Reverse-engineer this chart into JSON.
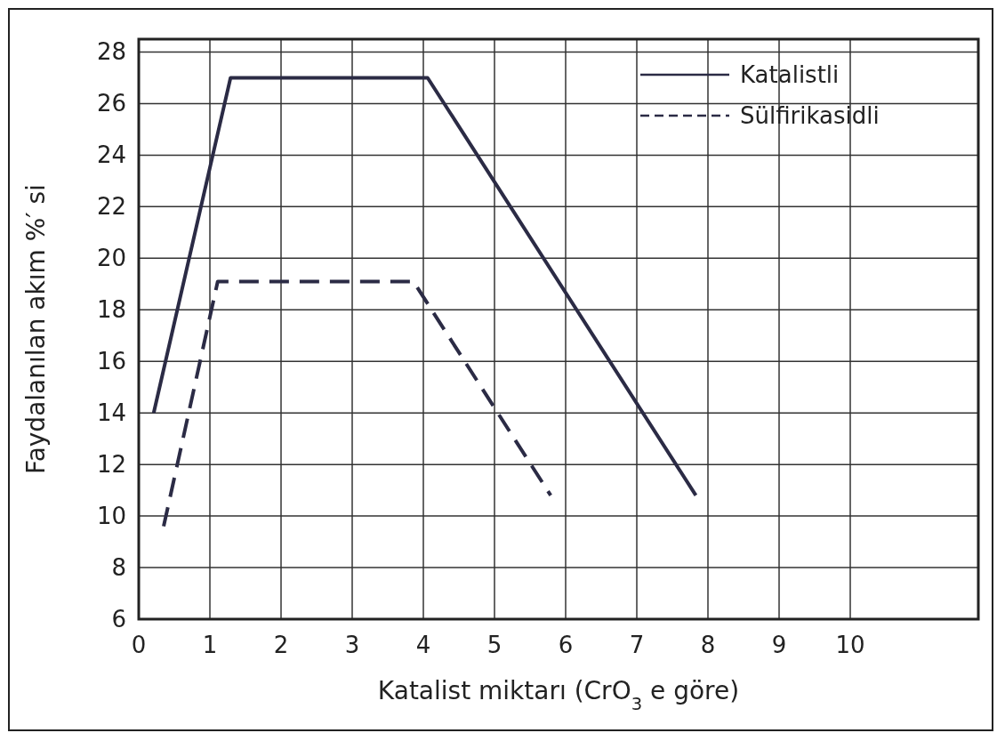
{
  "chart_data": {
    "type": "line",
    "xlabel": "Katalist miktarı (CrO$_{3}$ e göre)",
    "ylabel": "Faydalanılan akım %′ si",
    "xlim": [
      0,
      11.8
    ],
    "xticks": [
      0,
      1,
      2,
      3,
      4,
      5,
      6,
      7,
      8,
      9,
      10
    ],
    "ylim": [
      6,
      28.5
    ],
    "yticks": [
      6,
      8,
      10,
      12,
      14,
      16,
      18,
      20,
      22,
      24,
      26,
      28
    ],
    "grid": true,
    "legend": "top right",
    "marker": "none",
    "series": [
      {
        "name": "Katalistli",
        "color": "#2b2b45",
        "line_style": "solid",
        "x": [
          0.21,
          1.29,
          4.06,
          7.83
        ],
        "values": [
          14.0,
          27.0,
          27.0,
          10.8
        ]
      },
      {
        "name": "Sülfirikasidli",
        "color": "#2b2b45",
        "line_style": "dashed",
        "x": [
          0.35,
          1.11,
          3.86,
          5.79
        ],
        "values": [
          9.6,
          19.1,
          19.1,
          10.8
        ]
      }
    ]
  }
}
